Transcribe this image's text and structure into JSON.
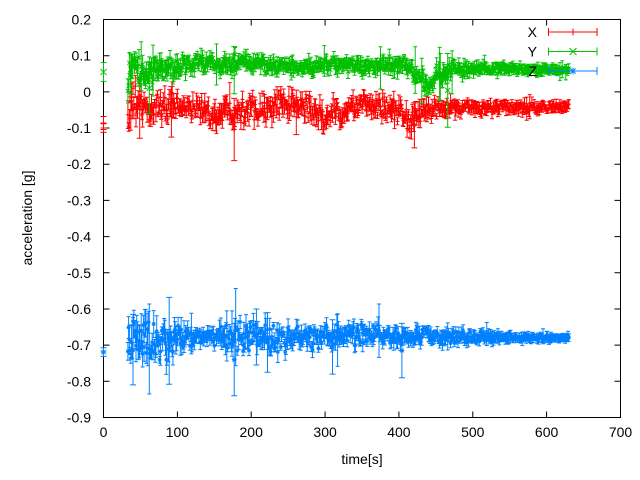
{
  "chart_data": {
    "type": "errorbar-scatter",
    "title": "",
    "xlabel": "time[s]",
    "ylabel": "acceleration [g]",
    "xlim": [
      0,
      700
    ],
    "ylim": [
      -0.9,
      0.2
    ],
    "grid": false,
    "background_color": "#ffffff",
    "axis_color": "#000000",
    "xtick_values": [
      0,
      100,
      200,
      300,
      400,
      500,
      600,
      700
    ],
    "xtick_labels": [
      "0",
      "100",
      "200",
      "300",
      "400",
      "500",
      "600",
      "700"
    ],
    "ytick_values": [
      -0.9,
      -0.8,
      -0.7,
      -0.6,
      -0.5,
      -0.4,
      -0.3,
      -0.2,
      -0.1,
      0,
      0.1,
      0.2
    ],
    "ytick_labels": [
      "-0.9",
      "-0.8",
      "-0.7",
      "-0.6",
      "-0.5",
      "-0.4",
      "-0.3",
      "-0.2",
      "-0.1",
      "0",
      "0.1",
      "0.2"
    ],
    "legend": {
      "position": "top-right",
      "entries": [
        "X",
        "Y",
        "Z"
      ]
    },
    "series": [
      {
        "name": "X",
        "color": "#ff0000",
        "marker": "plus",
        "range": [
          33,
          630
        ],
        "step": 1,
        "points_at_zero": [
          {
            "t": 0,
            "y": -0.086,
            "err": 0.018
          },
          {
            "t": 0,
            "y": -0.1,
            "err": 0.012
          }
        ],
        "envelope": [
          [
            33,
            -0.05,
            0.065
          ],
          [
            45,
            -0.03,
            0.06
          ],
          [
            57,
            -0.06,
            0.058
          ],
          [
            70,
            -0.04,
            0.048
          ],
          [
            90,
            -0.048,
            0.055
          ],
          [
            110,
            -0.044,
            0.035
          ],
          [
            130,
            -0.042,
            0.035
          ],
          [
            150,
            -0.065,
            0.055
          ],
          [
            165,
            -0.045,
            0.038
          ],
          [
            180,
            -0.05,
            0.05
          ],
          [
            200,
            -0.045,
            0.042
          ],
          [
            230,
            -0.04,
            0.045
          ],
          [
            260,
            -0.035,
            0.04
          ],
          [
            285,
            -0.05,
            0.045
          ],
          [
            300,
            -0.075,
            0.045
          ],
          [
            310,
            -0.05,
            0.04
          ],
          [
            322,
            -0.07,
            0.042
          ],
          [
            335,
            -0.04,
            0.036
          ],
          [
            360,
            -0.034,
            0.036
          ],
          [
            375,
            -0.04,
            0.04
          ],
          [
            390,
            -0.045,
            0.046
          ],
          [
            408,
            -0.072,
            0.05
          ],
          [
            420,
            -0.088,
            0.044
          ],
          [
            435,
            -0.05,
            0.036
          ],
          [
            455,
            -0.045,
            0.03
          ],
          [
            475,
            -0.048,
            0.026
          ],
          [
            500,
            -0.045,
            0.022
          ],
          [
            550,
            -0.043,
            0.019
          ],
          [
            630,
            -0.042,
            0.016
          ]
        ],
        "spikes": [
          [
            49,
            -0.128,
            0.034
          ],
          [
            92,
            -0.125,
            0.015
          ],
          [
            177,
            -0.19,
            -0.018
          ],
          [
            261,
            -0.118,
            0.005
          ],
          [
            421,
            -0.155,
            -0.03
          ]
        ]
      },
      {
        "name": "Y",
        "color": "#00c000",
        "marker": "cross",
        "range": [
          33,
          630
        ],
        "step": 1,
        "points_at_zero": [
          {
            "t": 0,
            "y": 0.055,
            "err": 0.026
          }
        ],
        "envelope": [
          [
            33,
            0.048,
            0.058
          ],
          [
            40,
            0.068,
            0.048
          ],
          [
            50,
            0.052,
            0.052
          ],
          [
            62,
            0.05,
            0.05
          ],
          [
            75,
            0.065,
            0.042
          ],
          [
            100,
            0.068,
            0.032
          ],
          [
            130,
            0.082,
            0.032
          ],
          [
            155,
            0.07,
            0.028
          ],
          [
            175,
            0.078,
            0.032
          ],
          [
            200,
            0.08,
            0.032
          ],
          [
            230,
            0.072,
            0.026
          ],
          [
            270,
            0.068,
            0.024
          ],
          [
            310,
            0.076,
            0.028
          ],
          [
            350,
            0.071,
            0.026
          ],
          [
            390,
            0.078,
            0.03
          ],
          [
            412,
            0.068,
            0.03
          ],
          [
            428,
            0.038,
            0.034
          ],
          [
            440,
            0.008,
            0.032
          ],
          [
            452,
            0.05,
            0.04
          ],
          [
            468,
            0.06,
            0.03
          ],
          [
            500,
            0.065,
            0.021
          ],
          [
            550,
            0.063,
            0.016
          ],
          [
            630,
            0.062,
            0.014
          ]
        ],
        "spikes": [
          [
            37,
            -0.005,
            0.105
          ],
          [
            62,
            -0.06,
            0.08
          ],
          [
            177,
            -0.005,
            0.125
          ],
          [
            466,
            -0.098,
            0.106
          ]
        ]
      },
      {
        "name": "Z",
        "color": "#0080ff",
        "marker": "star",
        "range": [
          33,
          630
        ],
        "step": 1,
        "points_at_zero": [
          {
            "t": 0,
            "y": -0.719,
            "err": 0.012
          }
        ],
        "envelope": [
          [
            33,
            -0.685,
            0.075
          ],
          [
            60,
            -0.69,
            0.08
          ],
          [
            90,
            -0.68,
            0.07
          ],
          [
            115,
            -0.676,
            0.038
          ],
          [
            140,
            -0.675,
            0.026
          ],
          [
            165,
            -0.678,
            0.045
          ],
          [
            180,
            -0.682,
            0.055
          ],
          [
            205,
            -0.678,
            0.05
          ],
          [
            225,
            -0.68,
            0.055
          ],
          [
            255,
            -0.678,
            0.045
          ],
          [
            285,
            -0.68,
            0.04
          ],
          [
            315,
            -0.675,
            0.042
          ],
          [
            345,
            -0.672,
            0.035
          ],
          [
            375,
            -0.672,
            0.034
          ],
          [
            405,
            -0.676,
            0.036
          ],
          [
            435,
            -0.675,
            0.03
          ],
          [
            465,
            -0.677,
            0.026
          ],
          [
            500,
            -0.678,
            0.021
          ],
          [
            550,
            -0.679,
            0.015
          ],
          [
            600,
            -0.68,
            0.011
          ],
          [
            630,
            -0.68,
            0.009
          ]
        ],
        "spikes": [
          [
            40,
            -0.81,
            -0.615
          ],
          [
            89,
            -0.808,
            -0.568
          ],
          [
            177,
            -0.84,
            -0.64
          ],
          [
            207,
            -0.755,
            -0.6
          ],
          [
            222,
            -0.775,
            -0.61
          ],
          [
            310,
            -0.78,
            -0.63
          ],
          [
            404,
            -0.79,
            -0.64
          ]
        ]
      }
    ]
  }
}
